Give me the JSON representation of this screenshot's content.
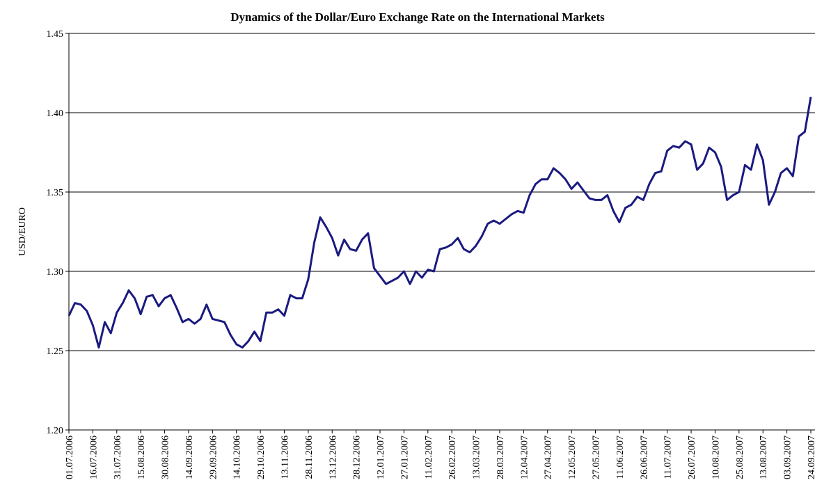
{
  "chart_data": {
    "type": "line",
    "title": "Dynamics of the Dollar/Euro Exchange Rate on the International Markets",
    "y_label": "USD/EURO",
    "categories": [
      "01.07.2006",
      null,
      null,
      null,
      "16.07.2006",
      null,
      null,
      null,
      "31.07.2006",
      null,
      null,
      null,
      "15.08.2006",
      null,
      null,
      null,
      "30.08.2006",
      null,
      null,
      null,
      "14.09.2006",
      null,
      null,
      null,
      "29.09.2006",
      null,
      null,
      null,
      "14.10.2006",
      null,
      null,
      null,
      "29.10.2006",
      null,
      null,
      null,
      "13.11.2006",
      null,
      null,
      null,
      "28.11.2006",
      null,
      null,
      null,
      "13.12.2006",
      null,
      null,
      null,
      "28.12.2006",
      null,
      null,
      null,
      "12.01.2007",
      null,
      null,
      null,
      "27.01.2007",
      null,
      null,
      null,
      "11.02.2007",
      null,
      null,
      null,
      "26.02.2007",
      null,
      null,
      null,
      "13.03.2007",
      null,
      null,
      null,
      "28.03.2007",
      null,
      null,
      null,
      "12.04.2007",
      null,
      null,
      null,
      "27.04.2007",
      null,
      null,
      null,
      "12.05.2007",
      null,
      null,
      null,
      "27.05.2007",
      null,
      null,
      null,
      "11.06.2007",
      null,
      null,
      null,
      "26.06.2007",
      null,
      null,
      null,
      "11.07.2007",
      null,
      null,
      null,
      "26.07.2007",
      null,
      null,
      null,
      "10.08.2007",
      null,
      null,
      null,
      "25.08.2007",
      null,
      null,
      null,
      "13.08.2007",
      null,
      null,
      null,
      "03.09.2007",
      null,
      null,
      null,
      "24.09.2007"
    ],
    "values": [
      1.272,
      1.28,
      1.279,
      1.275,
      1.266,
      1.252,
      1.268,
      1.261,
      1.274,
      1.28,
      1.288,
      1.283,
      1.273,
      1.284,
      1.285,
      1.278,
      1.283,
      1.285,
      1.277,
      1.268,
      1.27,
      1.267,
      1.27,
      1.279,
      1.27,
      1.269,
      1.268,
      1.26,
      1.254,
      1.252,
      1.256,
      1.262,
      1.256,
      1.274,
      1.274,
      1.276,
      1.272,
      1.285,
      1.283,
      1.283,
      1.295,
      1.318,
      1.334,
      1.328,
      1.321,
      1.31,
      1.32,
      1.314,
      1.313,
      1.32,
      1.324,
      1.302,
      1.297,
      1.292,
      1.294,
      1.296,
      1.3,
      1.292,
      1.3,
      1.296,
      1.301,
      1.3,
      1.314,
      1.315,
      1.317,
      1.321,
      1.314,
      1.312,
      1.316,
      1.322,
      1.33,
      1.332,
      1.33,
      1.333,
      1.336,
      1.338,
      1.337,
      1.348,
      1.355,
      1.358,
      1.358,
      1.365,
      1.362,
      1.358,
      1.352,
      1.356,
      1.351,
      1.346,
      1.345,
      1.345,
      1.348,
      1.338,
      1.331,
      1.34,
      1.342,
      1.347,
      1.345,
      1.355,
      1.362,
      1.363,
      1.376,
      1.379,
      1.378,
      1.382,
      1.38,
      1.364,
      1.368,
      1.378,
      1.375,
      1.366,
      1.345,
      1.348,
      1.35,
      1.367,
      1.364,
      1.38,
      1.37,
      1.342,
      1.35,
      1.362,
      1.365,
      1.36,
      1.385,
      1.388,
      1.41
    ],
    "color": "#1a1a80",
    "ylim": [
      1.2,
      1.45
    ],
    "yticks": [
      {
        "value": 1.2,
        "label": "1.20"
      },
      1.25,
      {
        "value": 1.3,
        "label": "1.30"
      },
      1.35,
      {
        "value": 1.4,
        "label": "1.40"
      },
      1.45
    ],
    "grid": true
  }
}
